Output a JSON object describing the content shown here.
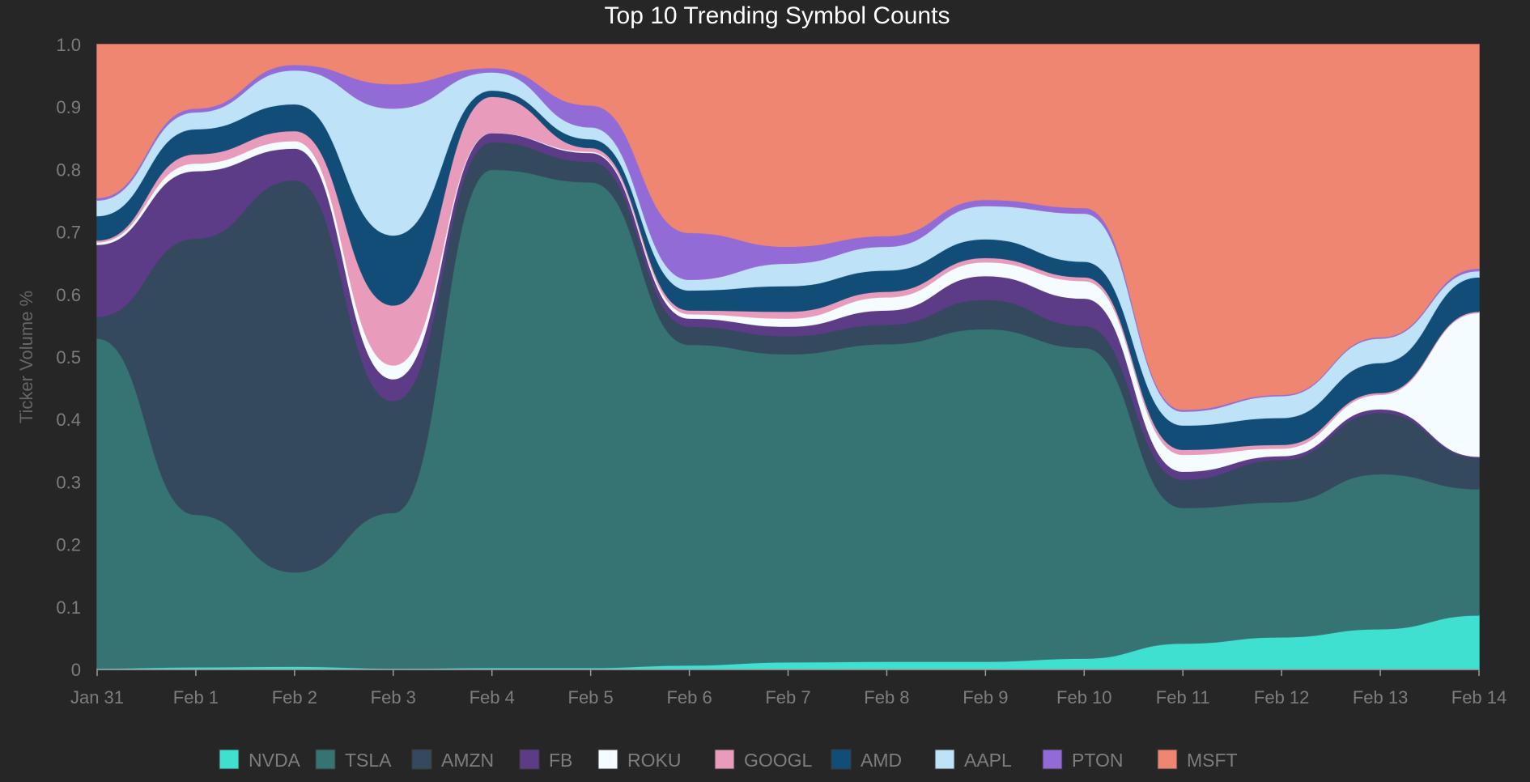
{
  "chart_data": {
    "type": "area",
    "stacked": "percent",
    "title": "Top 10 Trending Symbol Counts",
    "xlabel": "",
    "ylabel": "Ticker Volume %",
    "ylim": [
      0,
      1
    ],
    "yticks": [
      "0",
      "0.1",
      "0.2",
      "0.3",
      "0.4",
      "0.5",
      "0.6",
      "0.7",
      "0.8",
      "0.9",
      "1.0"
    ],
    "ytick_values": [
      0,
      0.1,
      0.2,
      0.3,
      0.4,
      0.5,
      0.6,
      0.7,
      0.8,
      0.9,
      1.0
    ],
    "categories": [
      "Jan 31",
      "Feb 1",
      "Feb 2",
      "Feb 3",
      "Feb 4",
      "Feb 5",
      "Feb 6",
      "Feb 7",
      "Feb 8",
      "Feb 9",
      "Feb 10",
      "Feb 11",
      "Feb 12",
      "Feb 13",
      "Feb 14"
    ],
    "grid": false,
    "legend_position": "bottom",
    "series": [
      {
        "name": "NVDA",
        "color": "#40e0d0",
        "values": [
          0.002,
          0.004,
          0.005,
          0.002,
          0.003,
          0.003,
          0.007,
          0.012,
          0.013,
          0.013,
          0.018,
          0.042,
          0.052,
          0.065,
          0.087
        ]
      },
      {
        "name": "TSLA",
        "color": "#367373",
        "values": [
          0.528,
          0.244,
          0.151,
          0.249,
          0.797,
          0.777,
          0.513,
          0.493,
          0.508,
          0.532,
          0.497,
          0.217,
          0.216,
          0.248,
          0.202
        ]
      },
      {
        "name": "AMZN",
        "color": "#34495e",
        "values": [
          0.035,
          0.442,
          0.627,
          0.179,
          0.044,
          0.033,
          0.029,
          0.029,
          0.031,
          0.047,
          0.035,
          0.045,
          0.068,
          0.098,
          0.05
        ]
      },
      {
        "name": "FB",
        "color": "#5c3c87",
        "values": [
          0.115,
          0.108,
          0.051,
          0.035,
          0.015,
          0.014,
          0.013,
          0.015,
          0.023,
          0.038,
          0.044,
          0.013,
          0.006,
          0.006,
          0.002
        ]
      },
      {
        "name": "ROKU",
        "color": "#f5fcff",
        "values": [
          0.004,
          0.012,
          0.012,
          0.022,
          0.0,
          0.002,
          0.007,
          0.013,
          0.021,
          0.022,
          0.028,
          0.027,
          0.012,
          0.023,
          0.23
        ]
      },
      {
        "name": "GOOGL",
        "color": "#e89bbb",
        "values": [
          0.003,
          0.015,
          0.016,
          0.096,
          0.058,
          0.006,
          0.006,
          0.011,
          0.009,
          0.007,
          0.006,
          0.008,
          0.006,
          0.003,
          0.002
        ]
      },
      {
        "name": "AMD",
        "color": "#124d77",
        "values": [
          0.039,
          0.04,
          0.043,
          0.112,
          0.01,
          0.014,
          0.032,
          0.041,
          0.034,
          0.03,
          0.025,
          0.039,
          0.043,
          0.048,
          0.055
        ]
      },
      {
        "name": "AAPL",
        "color": "#bee2f7",
        "values": [
          0.025,
          0.027,
          0.054,
          0.203,
          0.029,
          0.019,
          0.017,
          0.036,
          0.038,
          0.053,
          0.077,
          0.022,
          0.035,
          0.039,
          0.01
        ]
      },
      {
        "name": "PTON",
        "color": "#936bd6",
        "values": [
          0.004,
          0.006,
          0.009,
          0.039,
          0.007,
          0.035,
          0.075,
          0.027,
          0.017,
          0.01,
          0.009,
          0.003,
          0.002,
          0.002,
          0.004
        ]
      },
      {
        "name": "MSFT",
        "color": "#ee8672",
        "values": [
          0.245,
          0.102,
          0.032,
          0.063,
          0.037,
          0.097,
          0.301,
          0.323,
          0.306,
          0.248,
          0.261,
          0.584,
          0.56,
          0.468,
          0.358
        ]
      }
    ]
  }
}
